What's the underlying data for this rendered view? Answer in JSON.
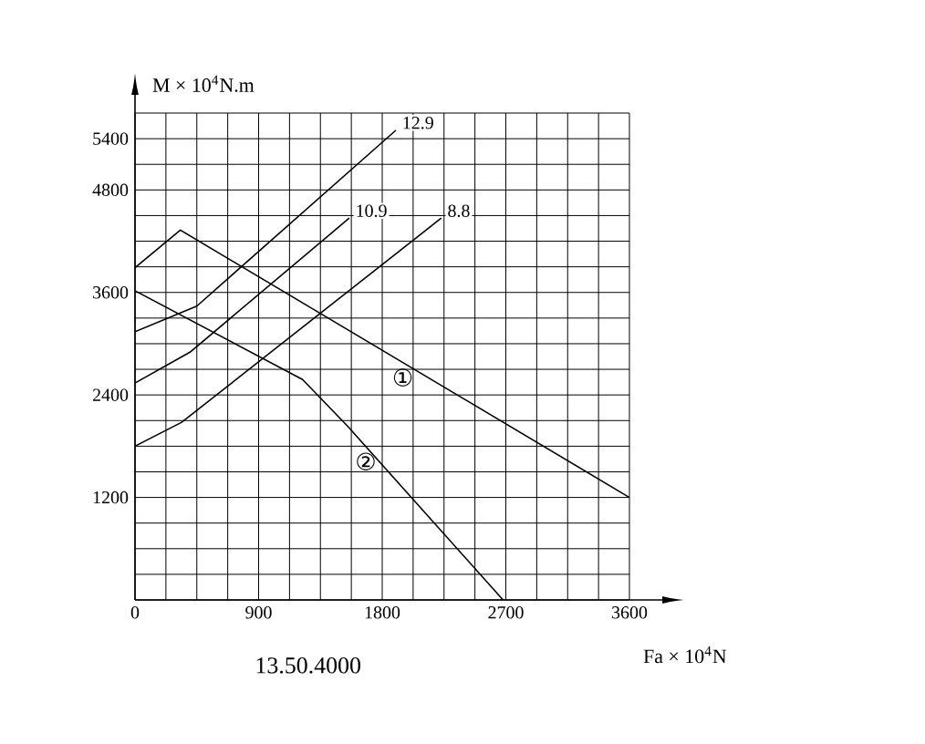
{
  "chart_data": {
    "type": "line",
    "title": "13.50.4000",
    "xlabel": "Fa × 10$^{4}$N",
    "ylabel": "M × 10$^{4}$N.m",
    "xlim": [
      0,
      3600
    ],
    "ylim": [
      0,
      5700
    ],
    "xticks": [
      0,
      {
        "value": 225,
        "label": null
      },
      {
        "value": 450,
        "label": null
      },
      {
        "value": 675,
        "label": null
      },
      900,
      {
        "value": 1125,
        "label": null
      },
      {
        "value": 1350,
        "label": null
      },
      {
        "value": 1575,
        "label": null
      },
      1800,
      {
        "value": 2025,
        "label": null
      },
      {
        "value": 2250,
        "label": null
      },
      {
        "value": 2475,
        "label": null
      },
      2700,
      {
        "value": 2925,
        "label": null
      },
      {
        "value": 3150,
        "label": null
      },
      {
        "value": 3375,
        "label": null
      },
      3600
    ],
    "yticks": [
      {
        "value": 0,
        "label": null
      },
      {
        "value": 300,
        "label": null
      },
      {
        "value": 600,
        "label": null
      },
      {
        "value": 900,
        "label": null
      },
      1200,
      {
        "value": 1500,
        "label": null
      },
      {
        "value": 1800,
        "label": null
      },
      {
        "value": 2100,
        "label": null
      },
      2400,
      {
        "value": 2700,
        "label": null
      },
      {
        "value": 3000,
        "label": null
      },
      {
        "value": 3300,
        "label": null
      },
      3600,
      {
        "value": 3900,
        "label": null
      },
      {
        "value": 4200,
        "label": null
      },
      {
        "value": 4500,
        "label": null
      },
      4800,
      {
        "value": 5100,
        "label": null
      },
      5400,
      {
        "value": 5700,
        "label": null
      }
    ],
    "grid": true,
    "marker": "none",
    "line_style": "solid",
    "series": [
      {
        "name": "12.9",
        "color": "#000000",
        "x": [
          0,
          450,
          1900
        ],
        "values": [
          3140,
          3440,
          5500
        ]
      },
      {
        "name": "10.9",
        "color": "#000000",
        "x": [
          0,
          400,
          1560
        ],
        "values": [
          2540,
          2900,
          4470
        ]
      },
      {
        "name": "8.8",
        "color": "#000000",
        "x": [
          0,
          340,
          2230
        ],
        "values": [
          1800,
          2080,
          4470
        ]
      },
      {
        "name": "①",
        "color": "#000000",
        "x": [
          0,
          330,
          3600
        ],
        "values": [
          3890,
          4330,
          1200
        ]
      },
      {
        "name": "②",
        "color": "#000000",
        "x": [
          0,
          1220,
          1550,
          2680
        ],
        "values": [
          3620,
          2580,
          2030,
          0
        ]
      }
    ]
  }
}
